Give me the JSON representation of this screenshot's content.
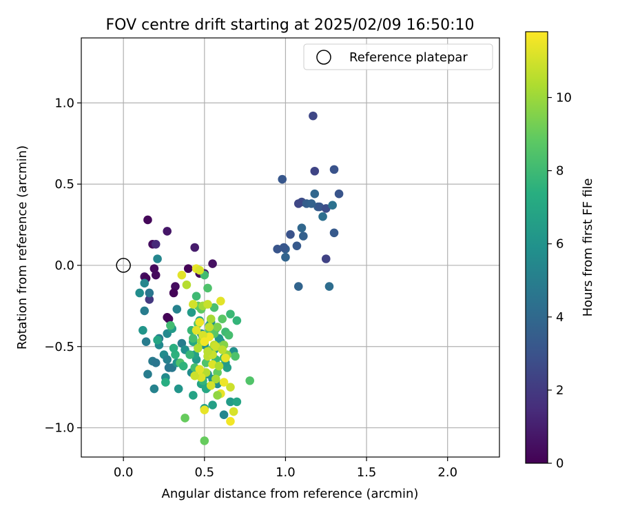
{
  "chart_data": {
    "type": "scatter",
    "title": "FOV centre drift starting at 2025/02/09 16:50:10",
    "xlabel": "Angular distance from reference (arcmin)",
    "ylabel": "Rotation from reference (arcmin)",
    "xlim": [
      -0.26,
      2.32
    ],
    "ylim": [
      -1.18,
      1.4
    ],
    "xticks": [
      0.0,
      0.5,
      1.0,
      1.5,
      2.0
    ],
    "xtick_labels": [
      "0.0",
      "0.5",
      "1.0",
      "1.5",
      "2.0"
    ],
    "yticks": [
      -1.0,
      -0.5,
      0.0,
      0.5,
      1.0
    ],
    "ytick_labels": [
      "−1.0",
      "−0.5",
      "0.0",
      "0.5",
      "1.0"
    ],
    "grid": true,
    "legend": {
      "placement": "top-right",
      "entries": [
        "Reference platepar"
      ]
    },
    "reference_point": {
      "x": 0.0,
      "y": 0.0
    },
    "colorbar": {
      "label": "Hours from first FF file",
      "colormap": "viridis",
      "range": [
        0,
        11.8
      ],
      "ticks": [
        0,
        2,
        4,
        6,
        8,
        10
      ],
      "tick_labels": [
        "0",
        "2",
        "4",
        "6",
        "8",
        "10"
      ]
    },
    "series": [
      {
        "x": [
          0.15,
          0.13,
          0.18,
          0.2,
          0.27,
          0.19,
          0.14,
          0.16,
          0.2,
          0.32,
          0.31,
          0.28,
          0.47,
          0.5,
          0.55,
          0.44,
          0.4,
          0.27,
          0.98,
          0.95,
          1.0,
          1.03,
          1.07,
          1.1,
          1.08,
          1.11,
          1.1,
          1.13,
          1.16,
          1.18,
          1.2,
          1.23,
          1.3,
          1.33,
          1.25,
          1.3,
          1.21,
          1.25,
          1.08,
          1.27,
          1.18,
          1.29,
          1.17,
          1.0,
          0.99,
          0.21,
          0.13,
          0.1,
          0.16,
          0.13,
          0.14,
          0.18,
          0.19,
          0.25,
          0.27,
          0.28,
          0.33,
          0.36,
          0.26,
          0.3,
          0.22,
          0.2,
          0.15,
          0.27,
          0.22,
          0.33,
          0.12,
          0.21,
          0.3,
          0.34,
          0.38,
          0.43,
          0.42,
          0.45,
          0.48,
          0.5,
          0.52,
          0.55,
          0.58,
          0.6,
          0.62,
          0.66,
          0.7,
          0.68,
          0.64,
          0.59,
          0.55,
          0.53,
          0.48,
          0.44,
          0.42,
          0.47,
          0.43,
          0.5,
          0.54,
          0.57,
          0.56,
          0.63,
          0.52,
          0.51,
          0.49,
          0.26,
          0.29,
          0.32,
          0.35,
          0.31,
          0.38,
          0.41,
          0.44,
          0.46,
          0.5,
          0.52,
          0.56,
          0.6,
          0.63,
          0.66,
          0.7,
          0.78,
          0.45,
          0.48,
          0.53,
          0.57,
          0.61,
          0.65,
          0.69,
          0.42,
          0.37,
          0.5,
          0.55,
          0.58,
          0.62,
          0.49,
          0.51,
          0.54,
          0.43,
          0.46,
          0.56,
          0.6,
          0.5,
          0.36,
          0.39,
          0.43,
          0.45,
          0.47,
          0.49,
          0.52,
          0.54,
          0.56,
          0.58,
          0.6,
          0.62,
          0.64,
          0.66,
          0.68,
          0.5,
          0.47,
          0.53,
          0.57,
          0.61,
          0.45,
          0.48,
          0.52,
          0.55,
          0.59,
          0.63,
          0.51,
          0.48,
          0.57,
          0.66,
          0.6,
          0.54,
          0.46,
          0.49,
          0.53,
          0.5,
          0.55,
          0.47,
          0.58,
          0.62,
          0.44,
          0.52
        ],
        "y": [
          0.28,
          -0.07,
          0.13,
          0.13,
          0.21,
          -0.02,
          -0.08,
          -0.21,
          -0.06,
          -0.13,
          -0.17,
          -0.33,
          -0.05,
          -0.05,
          0.01,
          0.11,
          -0.02,
          -0.32,
          0.53,
          0.1,
          0.1,
          0.19,
          0.12,
          0.39,
          0.38,
          0.18,
          0.23,
          0.38,
          0.38,
          0.44,
          0.36,
          0.3,
          0.59,
          0.44,
          0.04,
          0.2,
          0.36,
          0.35,
          -0.13,
          -0.13,
          0.58,
          0.37,
          0.92,
          0.05,
          0.11,
          0.04,
          -0.11,
          -0.17,
          -0.17,
          -0.28,
          -0.47,
          -0.59,
          -0.76,
          -0.55,
          -0.58,
          -0.63,
          -0.27,
          -0.48,
          -0.69,
          -0.63,
          -0.45,
          -0.6,
          -0.67,
          -0.42,
          -0.49,
          -0.6,
          -0.4,
          -0.46,
          -0.39,
          -0.76,
          -0.52,
          -0.8,
          -0.66,
          -0.58,
          -0.73,
          -0.88,
          -0.75,
          -0.86,
          -0.73,
          -0.47,
          -0.92,
          -0.84,
          -0.84,
          -0.53,
          -0.63,
          -0.45,
          -0.7,
          -0.37,
          -0.42,
          -0.55,
          -0.29,
          -0.34,
          -0.47,
          -0.49,
          -0.35,
          -0.39,
          -0.52,
          -0.6,
          -0.67,
          -0.76,
          -0.44,
          -0.72,
          -0.37,
          -0.55,
          -0.6,
          -0.51,
          -0.94,
          -0.55,
          -0.63,
          -0.25,
          -0.06,
          -0.14,
          -0.26,
          -0.5,
          -0.41,
          -0.3,
          -0.34,
          -0.71,
          -0.19,
          -0.27,
          -0.4,
          -0.58,
          -0.33,
          -0.43,
          -0.56,
          -0.4,
          -0.62,
          -0.47,
          -0.52,
          -0.66,
          -0.57,
          -0.71,
          -0.6,
          -0.52,
          -0.45,
          -0.36,
          -0.42,
          -0.5,
          -1.08,
          -0.06,
          -0.12,
          -0.24,
          -0.02,
          -0.03,
          -0.25,
          -0.24,
          -0.33,
          -0.49,
          -0.38,
          -0.22,
          -0.49,
          -0.55,
          -0.75,
          -0.9,
          -0.89,
          -0.35,
          -0.44,
          -0.5,
          -0.52,
          -0.4,
          -0.47,
          -0.56,
          -0.61,
          -0.62,
          -0.57,
          -0.66,
          -0.69,
          -0.7,
          -0.96,
          -0.79,
          -0.74,
          -0.51,
          -0.43,
          -0.38,
          -0.47,
          -0.55,
          -0.64,
          -0.8,
          -0.72,
          -0.68,
          -0.53
        ],
        "hours": [
          0.2,
          0.6,
          0.4,
          1.4,
          0.7,
          0.3,
          0.2,
          1.9,
          0.3,
          0.4,
          0.1,
          0.2,
          0.3,
          0.9,
          0.5,
          0.9,
          0.1,
          0.1,
          3.2,
          3.1,
          3.6,
          3.0,
          3.3,
          2.7,
          2.5,
          3.6,
          3.9,
          3.5,
          3.7,
          3.9,
          3.6,
          4.3,
          3.0,
          3.1,
          2.3,
          3.3,
          3.2,
          2.8,
          3.8,
          4.2,
          2.4,
          4.4,
          2.5,
          3.8,
          3.2,
          5.4,
          5.4,
          5.7,
          4.6,
          4.9,
          4.9,
          4.8,
          5.2,
          5.6,
          5.1,
          4.6,
          5.2,
          4.9,
          5.6,
          4.7,
          5.0,
          4.6,
          4.9,
          5.5,
          5.5,
          6.0,
          6.1,
          6.9,
          6.4,
          6.1,
          5.9,
          6.8,
          5.7,
          6.3,
          6.7,
          6.5,
          7.2,
          6.6,
          5.8,
          5.6,
          5.4,
          6.4,
          6.9,
          5.9,
          6.6,
          6.2,
          5.9,
          6.8,
          5.7,
          6.7,
          6.4,
          6.9,
          7.1,
          5.8,
          6.1,
          6.5,
          5.9,
          6.4,
          6.0,
          7.0,
          6.3,
          7.3,
          8.1,
          7.5,
          8.4,
          7.4,
          9.0,
          7.8,
          8.2,
          8.9,
          8.1,
          8.4,
          8.3,
          7.6,
          8.0,
          7.9,
          7.7,
          8.5,
          8.0,
          8.8,
          8.6,
          7.9,
          8.7,
          8.2,
          8.4,
          7.8,
          7.6,
          8.3,
          8.1,
          8.9,
          8.0,
          7.7,
          8.5,
          8.8,
          8.2,
          8.6,
          8.7,
          9.0,
          9.0,
          11.3,
          10.5,
          11.0,
          11.4,
          11.1,
          10.1,
          10.8,
          10.2,
          10.7,
          9.4,
          11.3,
          9.6,
          9.7,
          10.9,
          11.1,
          11.4,
          11.5,
          11.6,
          10.9,
          10.6,
          11.3,
          10.1,
          10.6,
          11.2,
          10.3,
          11.4,
          10.5,
          11.2,
          10.2,
          11.6,
          11.4,
          11.0,
          10.4,
          11.1,
          10.7,
          11.6,
          10.8,
          11.3,
          9.8,
          11.5,
          10.9,
          10.6
        ]
      }
    ]
  }
}
